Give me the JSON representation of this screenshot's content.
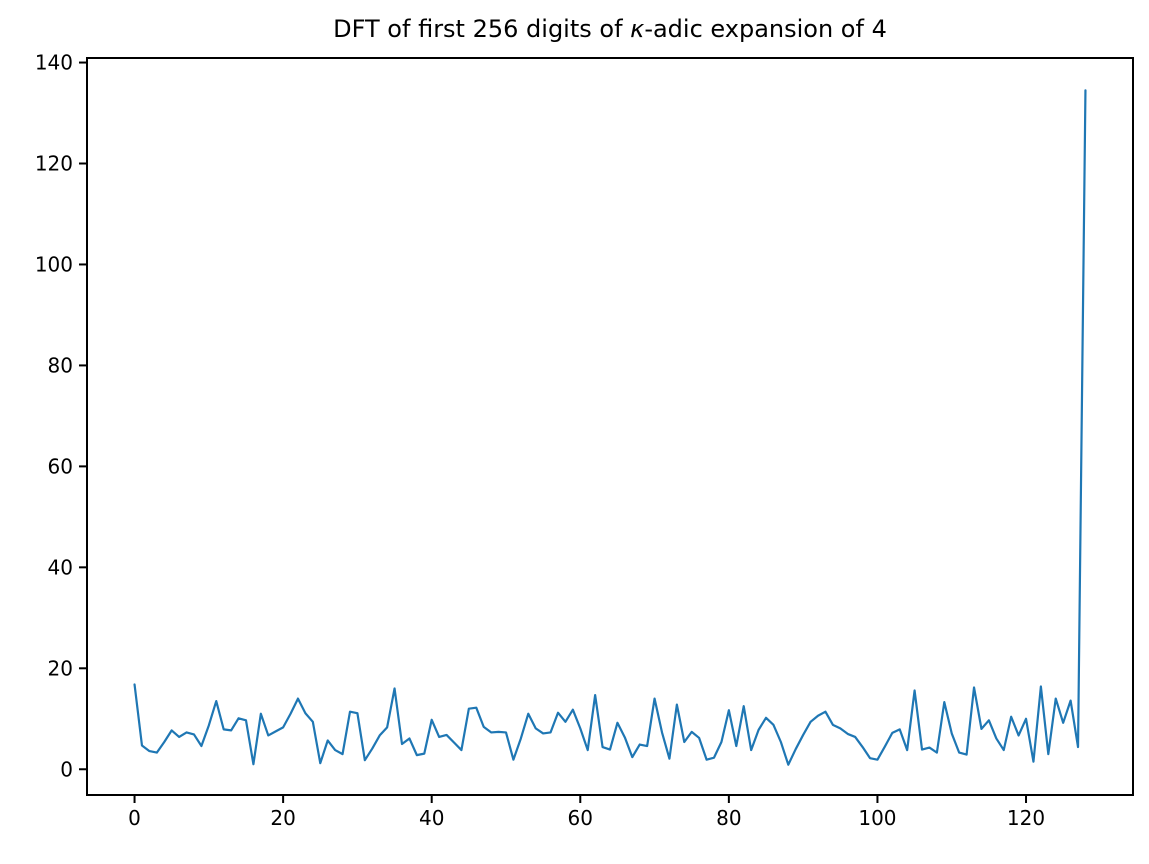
{
  "figure": {
    "title_prefix": "DFT of first 256 digits of ",
    "title_kappa": "κ",
    "title_suffix": "-adic expansion of 4"
  },
  "chart_data": {
    "type": "line",
    "title": "DFT of first 256 digits of κ-adic expansion of 4",
    "xlabel": "",
    "ylabel": "",
    "legend": "none",
    "grid": false,
    "line_color": "#1f77b4",
    "axis_color": "#000000",
    "x_ticks": [
      0,
      20,
      40,
      60,
      80,
      100,
      120
    ],
    "y_ticks": [
      0,
      20,
      40,
      60,
      80,
      100,
      120,
      140
    ],
    "xlim": [
      -6.4,
      134.4
    ],
    "ylim": [
      -5.1,
      140.9
    ],
    "x_start": 0,
    "x_step": 1,
    "values": [
      16.8,
      4.7,
      3.6,
      3.3,
      5.4,
      7.7,
      6.4,
      7.3,
      6.9,
      4.6,
      8.7,
      13.5,
      7.9,
      7.7,
      10.1,
      9.7,
      1.0,
      11.0,
      6.7,
      7.5,
      8.3,
      11.0,
      14.0,
      11.1,
      9.4,
      1.2,
      5.7,
      3.8,
      3.0,
      11.4,
      11.1,
      1.8,
      4.1,
      6.7,
      8.3,
      16.0,
      5.0,
      6.1,
      2.8,
      3.1,
      9.8,
      6.4,
      6.8,
      5.3,
      3.8,
      12.0,
      12.2,
      8.4,
      7.3,
      7.4,
      7.3,
      1.9,
      6.1,
      11.0,
      8.1,
      7.1,
      7.3,
      11.2,
      9.4,
      11.8,
      8.1,
      3.8,
      14.7,
      4.4,
      3.9,
      9.2,
      6.3,
      2.4,
      4.9,
      4.6,
      14.0,
      7.3,
      2.1,
      12.8,
      5.4,
      7.4,
      6.2,
      1.9,
      2.3,
      5.4,
      11.7,
      4.6,
      12.5,
      3.8,
      7.8,
      10.2,
      8.8,
      5.4,
      0.9,
      4.0,
      6.8,
      9.4,
      10.6,
      11.4,
      8.8,
      8.1,
      7.0,
      6.4,
      4.4,
      2.2,
      1.9,
      4.5,
      7.2,
      7.9,
      3.8,
      15.6,
      3.9,
      4.3,
      3.3,
      13.3,
      7.1,
      3.3,
      2.9,
      16.2,
      8.0,
      9.7,
      6.1,
      3.8,
      10.4,
      6.7,
      10.0,
      1.5,
      16.4,
      3.0,
      14.0,
      9.2,
      13.6,
      4.4,
      134.5
    ]
  }
}
